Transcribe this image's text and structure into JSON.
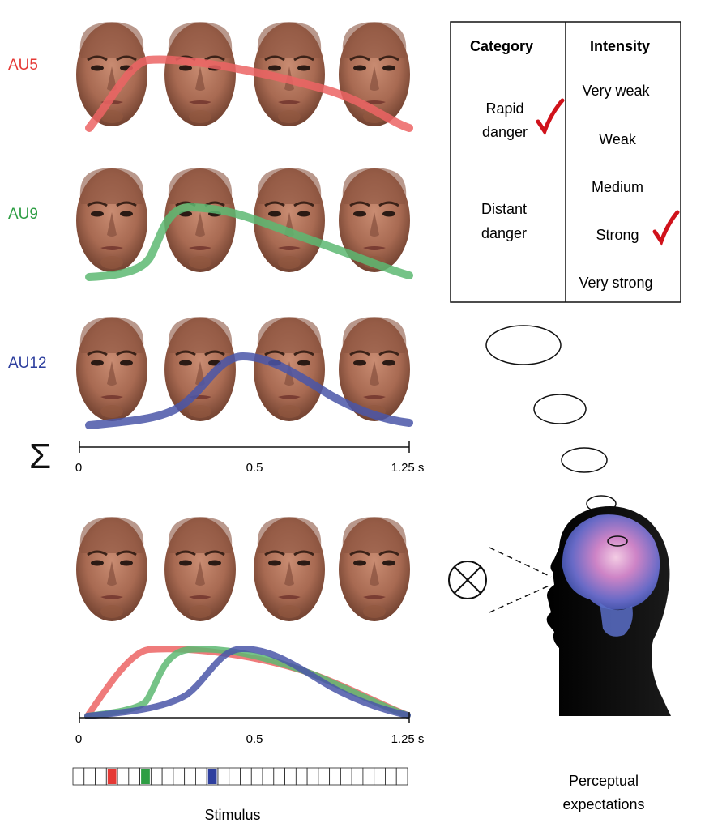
{
  "rows": [
    {
      "label": "AU5",
      "color": "#e53935",
      "curve_color": "#ec6464"
    },
    {
      "label": "AU9",
      "color": "#2e9e44",
      "curve_color": "#5db872"
    },
    {
      "label": "AU12",
      "color": "#2e3f9e",
      "curve_color": "#4a56a8"
    }
  ],
  "sum_symbol": "Σ",
  "axis": {
    "ticks": [
      "0",
      "0.5",
      "1.25 s"
    ]
  },
  "table": {
    "category_header": "Category",
    "intensity_header": "Intensity",
    "categories": [
      {
        "lines": [
          "Rapid",
          "danger"
        ],
        "checked": true
      },
      {
        "lines": [
          "Distant",
          "danger"
        ],
        "checked": false
      }
    ],
    "intensities": [
      {
        "label": "Very weak",
        "checked": false
      },
      {
        "label": "Weak",
        "checked": false
      },
      {
        "label": "Medium",
        "checked": false
      },
      {
        "label": "Strong",
        "checked": true
      },
      {
        "label": "Very strong",
        "checked": false
      }
    ],
    "check_color": "#d0121b"
  },
  "combined_axis": {
    "ticks": [
      "0",
      "0.5",
      "1.25 s"
    ]
  },
  "stimulus": {
    "label": "Stimulus",
    "cell_count": 30,
    "marked_cells": [
      {
        "index": 3,
        "color": "#e53935"
      },
      {
        "index": 6,
        "color": "#2e9e44"
      },
      {
        "index": 12,
        "color": "#2e3f9e"
      }
    ]
  },
  "observer_label_lines": [
    "Perceptual",
    "expectations"
  ]
}
